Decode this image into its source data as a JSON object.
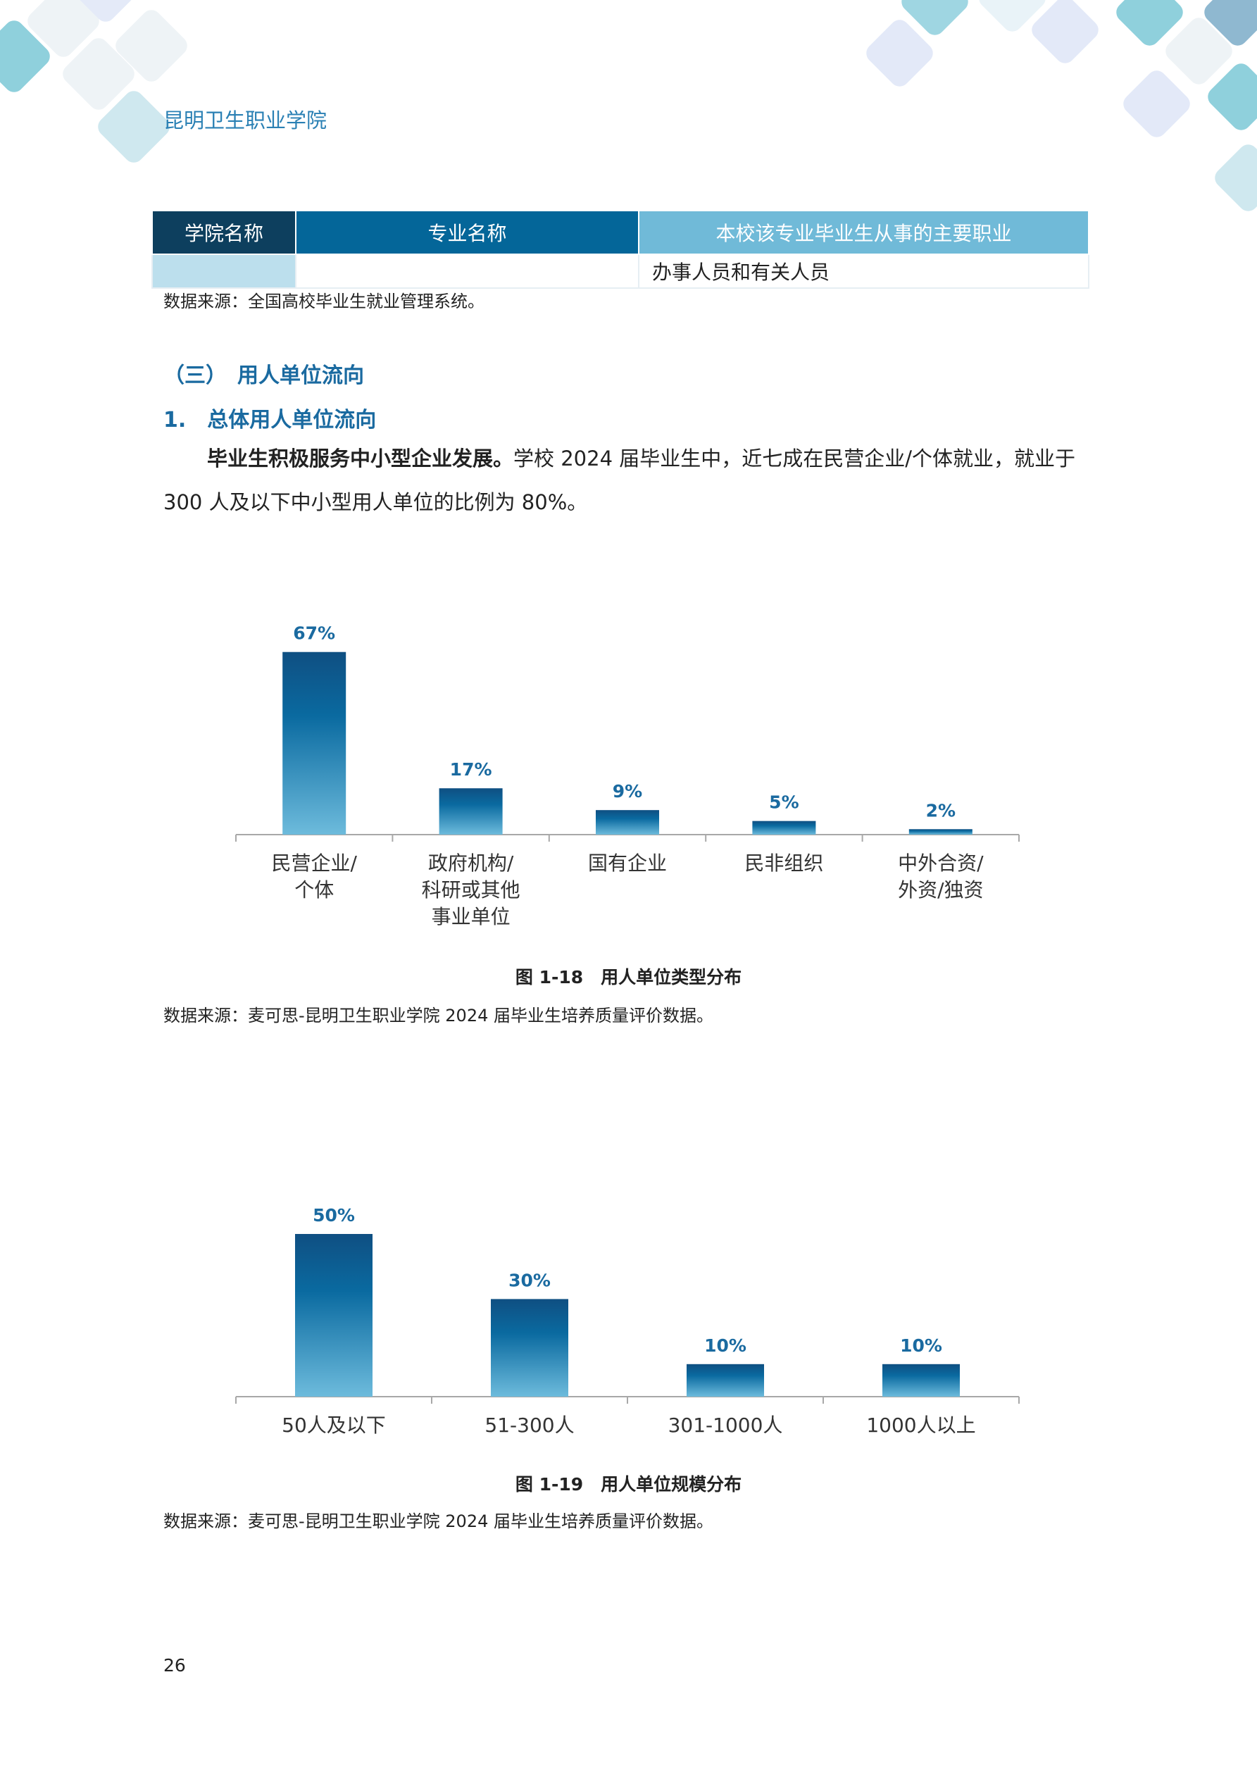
{
  "header": {
    "school_name": "昆明卫生职业学院"
  },
  "table": {
    "columns": [
      "学院名称",
      "专业名称",
      "本校该专业毕业生从事的主要职业"
    ],
    "header_colors": [
      "#0d3f5e",
      "#046699",
      "#70bad8"
    ],
    "rows": [
      [
        "",
        "",
        "办事人员和有关人员"
      ]
    ],
    "source": "数据来源：全国高校毕业生就业管理系统。"
  },
  "section": {
    "heading": "（三）　用人单位流向",
    "subheading": "1.　总体用人单位流向",
    "paragraph_bold": "毕业生积极服务中小型企业发展。",
    "paragraph_rest": "学校 2024 届毕业生中，近七成在民营企业/个体就业，就业于 300 人及以下中小型用人单位的比例为 80%。"
  },
  "chart_data": [
    {
      "type": "bar",
      "title": "图 1-18　用人单位类型分布",
      "categories": [
        [
          "民营企业/",
          "个体"
        ],
        [
          "政府机构/",
          "科研或其他",
          "事业单位"
        ],
        [
          "国有企业"
        ],
        [
          "民非组织"
        ],
        [
          "中外合资/",
          "外资/独资"
        ]
      ],
      "values": [
        67,
        17,
        9,
        5,
        2
      ],
      "data_labels": [
        "67%",
        "17%",
        "9%",
        "5%",
        "2%"
      ],
      "unit": "%",
      "grid": false,
      "bar_gradient": [
        "#0f4f82",
        "#0a6aa0",
        "#6dbbdc"
      ],
      "source": "数据来源：麦可思-昆明卫生职业学院 2024 届毕业生培养质量评价数据。"
    },
    {
      "type": "bar",
      "title": "图 1-19　用人单位规模分布",
      "categories": [
        [
          "50人及以下"
        ],
        [
          "51-300人"
        ],
        [
          "301-1000人"
        ],
        [
          "1000人以上"
        ]
      ],
      "values": [
        50,
        30,
        10,
        10
      ],
      "data_labels": [
        "50%",
        "30%",
        "10%",
        "10%"
      ],
      "unit": "%",
      "grid": false,
      "bar_gradient": [
        "#0f4f82",
        "#0a6aa0",
        "#6dbbdc"
      ],
      "source": "数据来源：麦可思-昆明卫生职业学院 2024 届毕业生培养质量评价数据。"
    }
  ],
  "page_number": "26"
}
